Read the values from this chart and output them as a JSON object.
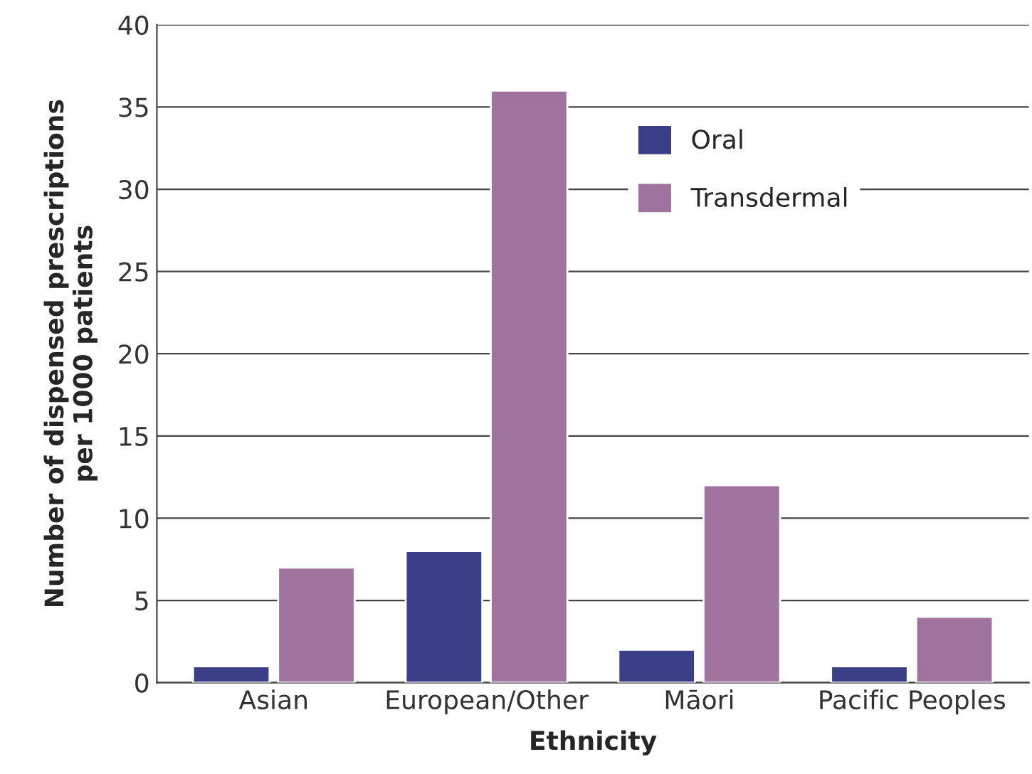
{
  "chart_data": {
    "type": "bar",
    "xlabel": "Ethnicity",
    "ylabel": "Number of dispensed prescriptions\nper 1000 patients",
    "categories": [
      "Asian",
      "European/Other",
      "Māori",
      "Pacific Peoples"
    ],
    "series": [
      {
        "name": "Oral",
        "color": "#3b3f87",
        "values": [
          1,
          8,
          2,
          1
        ]
      },
      {
        "name": "Transdermal",
        "color": "#a0729e",
        "values": [
          7,
          36,
          12,
          4
        ]
      }
    ],
    "ylim": [
      0,
      40
    ],
    "yticks": [
      0,
      5,
      10,
      15,
      20,
      25,
      30,
      35,
      40
    ],
    "grid": "y",
    "legend": "top right"
  }
}
